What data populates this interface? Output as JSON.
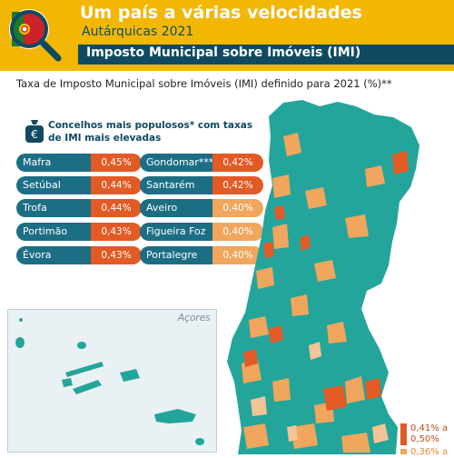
{
  "header": {
    "title": "Um país a várias velocidades",
    "subtitle": "Autárquicas 2021",
    "section_title": "Imposto Municipal sobre Imóveis (IMI)"
  },
  "map_title": "Taxa de Imposto Municipal sobre Imóveis (IMI) definido para 2021 (%)**",
  "top_councils": {
    "heading_line1": "Concelhos mais populosos* com taxas",
    "heading_line2": "de IMI mais elevadas",
    "left": [
      {
        "name": "Mafra",
        "value": "0,45%"
      },
      {
        "name": "Setúbal",
        "value": "0,44%"
      },
      {
        "name": "Trofa",
        "value": "0,44%"
      },
      {
        "name": "Portimão",
        "value": "0,43%"
      },
      {
        "name": "Évora",
        "value": "0,43%"
      }
    ],
    "right": [
      {
        "name": "Gondomar***",
        "value": "0,42%"
      },
      {
        "name": "Santarém",
        "value": "0,42%"
      },
      {
        "name": "Aveiro",
        "value": "0,40%"
      },
      {
        "name": "Figueira Foz",
        "value": "0,40%"
      },
      {
        "name": "Portalegre",
        "value": "0,40%"
      }
    ]
  },
  "azores_label": "Açores",
  "legend": [
    {
      "line1": "0,41% a",
      "line2": "0,50%",
      "color": "#e25a24"
    },
    {
      "line1": "0,36% a",
      "line2": "",
      "color": "#f0a65c"
    }
  ],
  "colors": {
    "brand_yellow": "#f2b705",
    "dark_teal": "#0f4a60",
    "teal": "#23a59b",
    "pill_teal": "#1c6e85",
    "orange_high": "#e25a24",
    "orange_mid": "#f0a65c",
    "sand_low": "#f3c497"
  }
}
